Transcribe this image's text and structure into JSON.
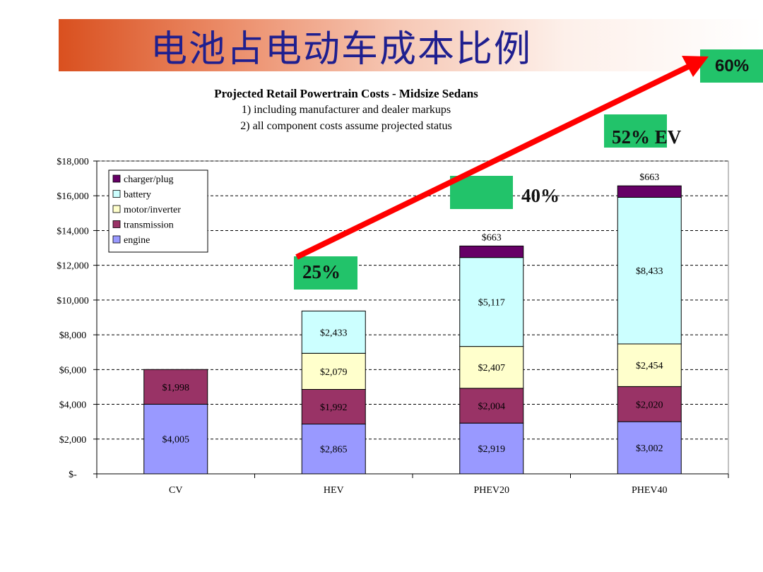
{
  "slide": {
    "title": "电池占电动车成本比例"
  },
  "colors": {
    "engine": "#9999ff",
    "transmission": "#993366",
    "motor_inverter": "#ffffcc",
    "battery": "#ccffff",
    "charger_plug": "#660066",
    "arrow": "#ff0000",
    "annotation_box": "#22c36a"
  },
  "annotations": {
    "hev": "25%",
    "phev20": "40%",
    "phev40": "52% EV",
    "ev": "60%"
  },
  "chart_data": {
    "type": "bar",
    "stacked": true,
    "title": "Projected Retail Powertrain Costs - Midsize Sedans",
    "subtitle": [
      "1) including manufacturer and dealer markups",
      "2) all component costs assume projected status"
    ],
    "xlabel": "",
    "ylabel": "",
    "ylim": [
      0,
      18000
    ],
    "yticks": [
      "$-",
      "$2,000",
      "$4,000",
      "$6,000",
      "$8,000",
      "$10,000",
      "$12,000",
      "$14,000",
      "$16,000",
      "$18,000"
    ],
    "grid": true,
    "legend_position": "top-left",
    "categories": [
      "CV",
      "HEV",
      "PHEV20",
      "PHEV40"
    ],
    "series": [
      {
        "name": "engine",
        "key": "engine",
        "values": [
          4005,
          2865,
          2919,
          3002
        ],
        "labels": [
          "$4,005",
          "$2,865",
          "$2,919",
          "$3,002"
        ]
      },
      {
        "name": "transmission",
        "key": "transmission",
        "values": [
          1998,
          1992,
          2004,
          2020
        ],
        "labels": [
          "$1,998",
          "$1,992",
          "$2,004",
          "$2,020"
        ]
      },
      {
        "name": "motor/inverter",
        "key": "motor_inverter",
        "values": [
          0,
          2079,
          2407,
          2454
        ],
        "labels": [
          "",
          "$2,079",
          "$2,407",
          "$2,454"
        ]
      },
      {
        "name": "battery",
        "key": "battery",
        "values": [
          0,
          2433,
          5117,
          8433
        ],
        "labels": [
          "",
          "$2,433",
          "$5,117",
          "$8,433"
        ]
      },
      {
        "name": "charger/plug",
        "key": "charger_plug",
        "values": [
          0,
          0,
          663,
          663
        ],
        "labels": [
          "",
          "",
          "$663",
          "$663"
        ]
      }
    ],
    "legend_order": [
      "charger/plug",
      "battery",
      "motor/inverter",
      "transmission",
      "engine"
    ]
  }
}
